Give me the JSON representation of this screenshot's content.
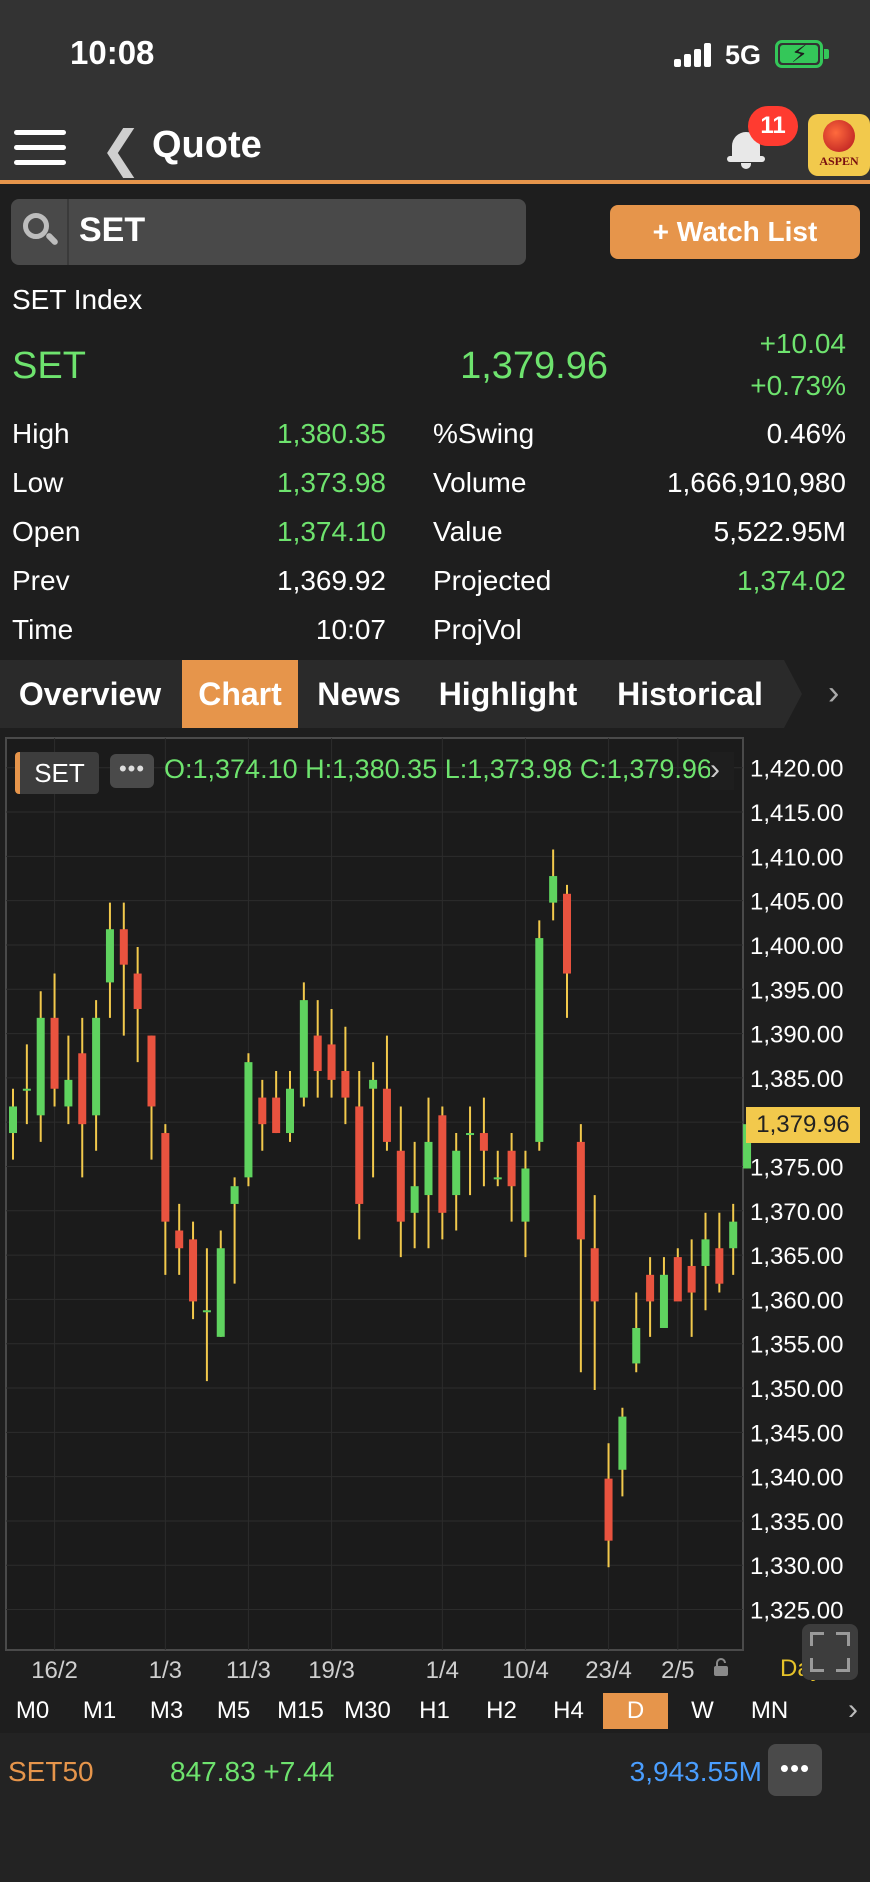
{
  "status_bar": {
    "time": "10:08",
    "network": "5G"
  },
  "header": {
    "title": "Quote",
    "notification_count": "11",
    "logo_text": "ASPEN"
  },
  "search": {
    "value": "SET"
  },
  "watch_button": "+ Watch List",
  "quote": {
    "index_name": "SET Index",
    "symbol": "SET",
    "last": "1,379.96",
    "change": "+10.04",
    "change_pct": "+0.73%",
    "rows": [
      {
        "l1": "High",
        "v1": "1,380.35",
        "c1": "green",
        "l2": "%Swing",
        "v2": "0.46%",
        "c2": "white"
      },
      {
        "l1": "Low",
        "v1": "1,373.98",
        "c1": "green",
        "l2": "Volume",
        "v2": "1,666,910,980",
        "c2": "white"
      },
      {
        "l1": "Open",
        "v1": "1,374.10",
        "c1": "green",
        "l2": "Value",
        "v2": "5,522.95M",
        "c2": "white"
      },
      {
        "l1": "Prev",
        "v1": "1,369.92",
        "c1": "white",
        "l2": "Projected",
        "v2": "1,374.02",
        "c2": "green"
      },
      {
        "l1": "Time",
        "v1": "10:07",
        "c1": "white",
        "l2": "ProjVol",
        "v2": "",
        "c2": "white"
      }
    ]
  },
  "tabs": [
    {
      "label": "Overview",
      "active": false
    },
    {
      "label": "Chart",
      "active": true
    },
    {
      "label": "News",
      "active": false
    },
    {
      "label": "Highlight",
      "active": false
    },
    {
      "label": "Historical",
      "active": false
    }
  ],
  "chart_header": {
    "symbol": "SET",
    "menu": "•••",
    "ohlc": "O:1,374.10 H:1,380.35 L:1,373.98 C:1,379.96"
  },
  "chart_data": {
    "type": "candlestick",
    "ylim": [
      1321,
      1422
    ],
    "y_ticks": [
      "1,420.00",
      "1,415.00",
      "1,410.00",
      "1,405.00",
      "1,400.00",
      "1,395.00",
      "1,390.00",
      "1,385.00",
      "1,380.00",
      "1,375.00",
      "1,370.00",
      "1,365.00",
      "1,360.00",
      "1,355.00",
      "1,350.00",
      "1,345.00",
      "1,340.00",
      "1,335.00",
      "1,330.00",
      "1,325.00"
    ],
    "last_price_label": "1,379.96",
    "last_price": 1379.96,
    "x_labels": [
      {
        "label": "16/2",
        "index": 3
      },
      {
        "label": "1/3",
        "index": 11
      },
      {
        "label": "11/3",
        "index": 17
      },
      {
        "label": "19/3",
        "index": 23
      },
      {
        "label": "1/4",
        "index": 31
      },
      {
        "label": "10/4",
        "index": 37
      },
      {
        "label": "23/4",
        "index": 43
      },
      {
        "label": "2/5",
        "index": 48
      }
    ],
    "candles": [
      {
        "o": 1379,
        "h": 1384,
        "l": 1376,
        "c": 1382
      },
      {
        "o": 1384,
        "h": 1389,
        "l": 1380,
        "c": 1384
      },
      {
        "o": 1381,
        "h": 1395,
        "l": 1378,
        "c": 1392
      },
      {
        "o": 1392,
        "h": 1397,
        "l": 1382,
        "c": 1384
      },
      {
        "o": 1382,
        "h": 1390,
        "l": 1380,
        "c": 1385
      },
      {
        "o": 1388,
        "h": 1392,
        "l": 1374,
        "c": 1380
      },
      {
        "o": 1381,
        "h": 1394,
        "l": 1377,
        "c": 1392
      },
      {
        "o": 1396,
        "h": 1405,
        "l": 1392,
        "c": 1402
      },
      {
        "o": 1402,
        "h": 1405,
        "l": 1390,
        "c": 1398
      },
      {
        "o": 1397,
        "h": 1400,
        "l": 1387,
        "c": 1393
      },
      {
        "o": 1390,
        "h": 1390,
        "l": 1376,
        "c": 1382
      },
      {
        "o": 1379,
        "h": 1380,
        "l": 1363,
        "c": 1369
      },
      {
        "o": 1368,
        "h": 1371,
        "l": 1363,
        "c": 1366
      },
      {
        "o": 1367,
        "h": 1369,
        "l": 1358,
        "c": 1360
      },
      {
        "o": 1359,
        "h": 1366,
        "l": 1351,
        "c": 1359
      },
      {
        "o": 1356,
        "h": 1368,
        "l": 1356,
        "c": 1366
      },
      {
        "o": 1371,
        "h": 1374,
        "l": 1362,
        "c": 1373
      },
      {
        "o": 1374,
        "h": 1388,
        "l": 1373,
        "c": 1387
      },
      {
        "o": 1383,
        "h": 1385,
        "l": 1377,
        "c": 1380
      },
      {
        "o": 1383,
        "h": 1386,
        "l": 1379,
        "c": 1379
      },
      {
        "o": 1379,
        "h": 1386,
        "l": 1378,
        "c": 1384
      },
      {
        "o": 1383,
        "h": 1396,
        "l": 1382,
        "c": 1394
      },
      {
        "o": 1390,
        "h": 1394,
        "l": 1383,
        "c": 1386
      },
      {
        "o": 1389,
        "h": 1393,
        "l": 1383,
        "c": 1385
      },
      {
        "o": 1386,
        "h": 1391,
        "l": 1380,
        "c": 1383
      },
      {
        "o": 1382,
        "h": 1386,
        "l": 1367,
        "c": 1371
      },
      {
        "o": 1384,
        "h": 1387,
        "l": 1374,
        "c": 1385
      },
      {
        "o": 1384,
        "h": 1390,
        "l": 1377,
        "c": 1378
      },
      {
        "o": 1377,
        "h": 1382,
        "l": 1365,
        "c": 1369
      },
      {
        "o": 1370,
        "h": 1378,
        "l": 1366,
        "c": 1373
      },
      {
        "o": 1372,
        "h": 1383,
        "l": 1366,
        "c": 1378
      },
      {
        "o": 1381,
        "h": 1382,
        "l": 1367,
        "c": 1370
      },
      {
        "o": 1372,
        "h": 1379,
        "l": 1368,
        "c": 1377
      },
      {
        "o": 1379,
        "h": 1382,
        "l": 1372,
        "c": 1379
      },
      {
        "o": 1379,
        "h": 1383,
        "l": 1373,
        "c": 1377
      },
      {
        "o": 1374,
        "h": 1377,
        "l": 1373,
        "c": 1374
      },
      {
        "o": 1377,
        "h": 1379,
        "l": 1369,
        "c": 1373
      },
      {
        "o": 1369,
        "h": 1377,
        "l": 1365,
        "c": 1375
      },
      {
        "o": 1378,
        "h": 1403,
        "l": 1377,
        "c": 1401
      },
      {
        "o": 1405,
        "h": 1411,
        "l": 1403,
        "c": 1408
      },
      {
        "o": 1406,
        "h": 1407,
        "l": 1392,
        "c": 1397
      },
      {
        "o": 1378,
        "h": 1380,
        "l": 1352,
        "c": 1367
      },
      {
        "o": 1366,
        "h": 1372,
        "l": 1350,
        "c": 1360
      },
      {
        "o": 1340,
        "h": 1344,
        "l": 1330,
        "c": 1333
      },
      {
        "o": 1341,
        "h": 1348,
        "l": 1338,
        "c": 1347
      },
      {
        "o": 1353,
        "h": 1361,
        "l": 1352,
        "c": 1357
      },
      {
        "o": 1363,
        "h": 1365,
        "l": 1356,
        "c": 1360
      },
      {
        "o": 1357,
        "h": 1365,
        "l": 1357,
        "c": 1363
      },
      {
        "o": 1365,
        "h": 1366,
        "l": 1361,
        "c": 1360
      },
      {
        "o": 1364,
        "h": 1367,
        "l": 1356,
        "c": 1361
      },
      {
        "o": 1364,
        "h": 1370,
        "l": 1359,
        "c": 1367
      },
      {
        "o": 1366,
        "h": 1370,
        "l": 1361,
        "c": 1362
      },
      {
        "o": 1366,
        "h": 1371,
        "l": 1363,
        "c": 1369
      },
      {
        "o": 1375,
        "h": 1381,
        "l": 1375,
        "c": 1380
      }
    ],
    "day_label": "Day"
  },
  "timeframes": [
    {
      "label": "M0",
      "active": false
    },
    {
      "label": "M1",
      "active": false
    },
    {
      "label": "M3",
      "active": false
    },
    {
      "label": "M5",
      "active": false
    },
    {
      "label": "M15",
      "active": false
    },
    {
      "label": "M30",
      "active": false
    },
    {
      "label": "H1",
      "active": false
    },
    {
      "label": "H2",
      "active": false
    },
    {
      "label": "H4",
      "active": false
    },
    {
      "label": "D",
      "active": true
    },
    {
      "label": "W",
      "active": false
    },
    {
      "label": "MN",
      "active": false
    }
  ],
  "ticker": {
    "symbol": "SET50",
    "last": "847.83 +7.44",
    "value": "3,943.55M",
    "menu": "•••"
  },
  "colors": {
    "accent": "#e6954b",
    "up": "#5fd35f",
    "down": "#e9533f",
    "wick": "#f2c94c"
  }
}
